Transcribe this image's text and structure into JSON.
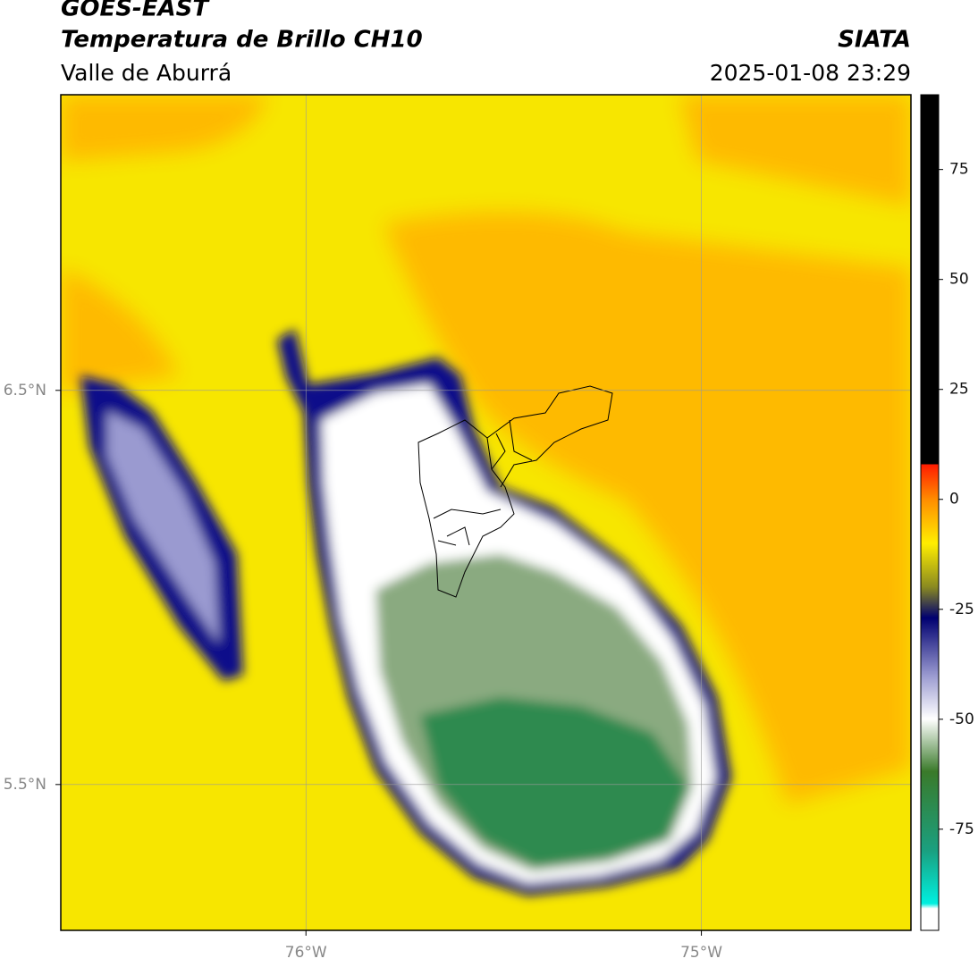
{
  "header": {
    "title": "GOES-EAST",
    "subtitle": "Temperatura de Brillo CH10",
    "region": "Valle de Aburrá",
    "source": "SIATA",
    "timestamp": "2025-01-08 23:29"
  },
  "map": {
    "xlim": [
      -76.62,
      -74.47
    ],
    "ylim": [
      5.13,
      7.25
    ],
    "xticks": [
      {
        "value": -76,
        "label": "76°W"
      },
      {
        "value": -75,
        "label": "75°W"
      }
    ],
    "yticks": [
      {
        "value": 6.5,
        "label": "6.5°N"
      },
      {
        "value": 5.5,
        "label": "5.5°N"
      }
    ],
    "grid": true
  },
  "colorbar": {
    "lim": [
      -98,
      92
    ],
    "ticks": [
      75,
      50,
      25,
      0,
      -25,
      -50,
      -75
    ]
  }
}
